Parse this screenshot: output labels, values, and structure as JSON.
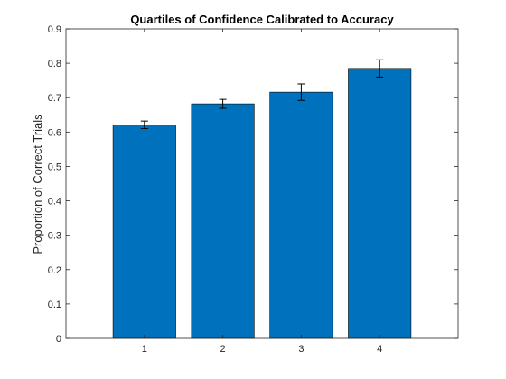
{
  "colors": {
    "bar_fill": "#0072BD",
    "bar_edge": "#000000",
    "axis": "#262626",
    "error_bar": "#000000",
    "background": "#ffffff"
  },
  "chart_data": {
    "type": "bar",
    "title": "Quartiles of Confidence Calibrated to Accuracy",
    "xlabel": "",
    "ylabel": "Proportion of Correct Trials",
    "categories": [
      "1",
      "2",
      "3",
      "4"
    ],
    "values": [
      0.621,
      0.682,
      0.716,
      0.785
    ],
    "errors": [
      0.011,
      0.013,
      0.024,
      0.025
    ],
    "xlim": [
      0,
      5
    ],
    "ylim": [
      0,
      0.9
    ],
    "yticks": [
      "0",
      "0.1",
      "0.2",
      "0.3",
      "0.4",
      "0.5",
      "0.6",
      "0.7",
      "0.8",
      "0.9"
    ],
    "grid": false,
    "legend": "none"
  }
}
